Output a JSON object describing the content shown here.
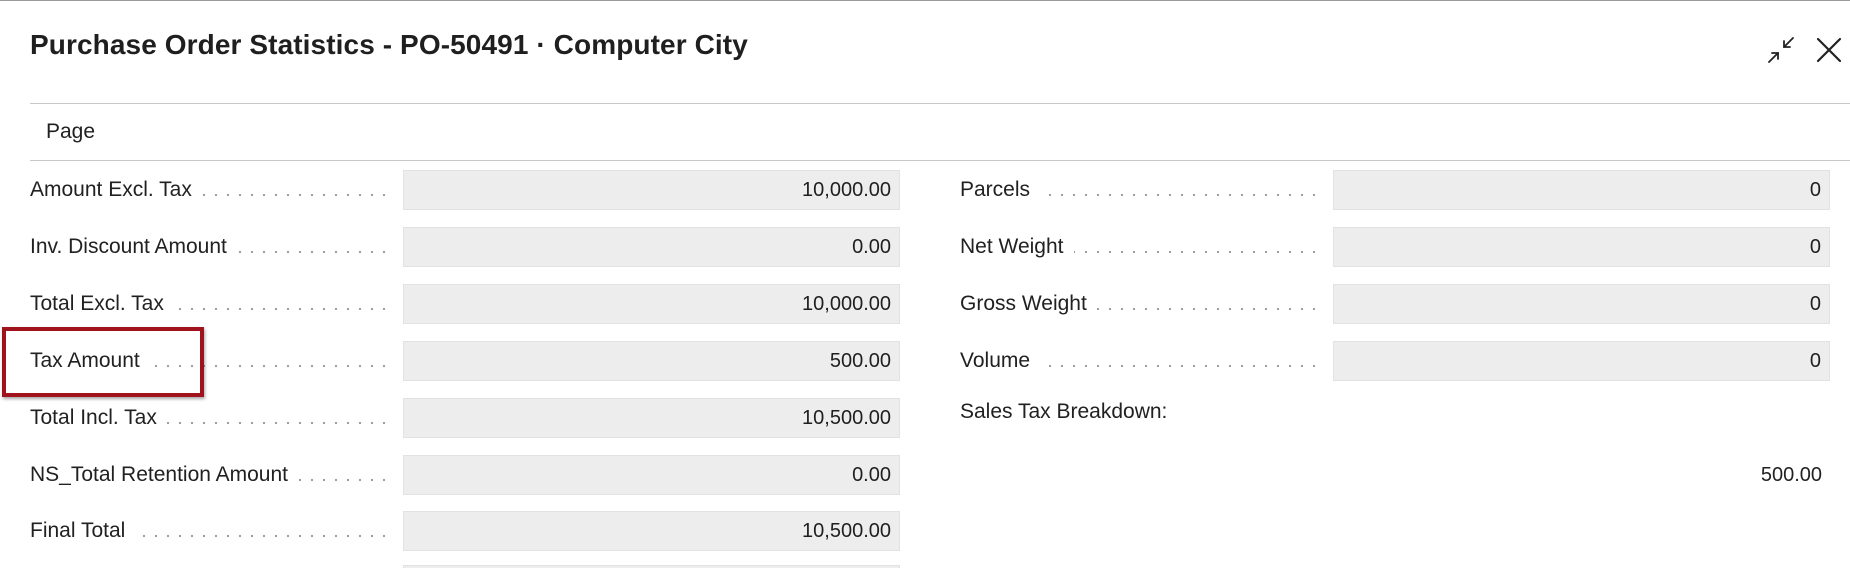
{
  "dialog": {
    "title": "Purchase Order Statistics - PO-50491 · Computer City"
  },
  "toolbar": {
    "page_tab": "Page"
  },
  "icons": {
    "collapse": "collapse-icon",
    "close": "close-icon"
  },
  "left_fields": [
    {
      "label": "Amount Excl. Tax",
      "value": "10,000.00"
    },
    {
      "label": "Inv. Discount Amount",
      "value": "0.00"
    },
    {
      "label": "Total Excl. Tax",
      "value": "10,000.00"
    },
    {
      "label": "Tax Amount",
      "value": "500.00"
    },
    {
      "label": "Total Incl. Tax",
      "value": "10,500.00"
    },
    {
      "label": "NS_Total Retention Amount",
      "value": "0.00"
    },
    {
      "label": "Final Total",
      "value": "10,500.00"
    }
  ],
  "right_fields": [
    {
      "label": "Parcels",
      "value": "0"
    },
    {
      "label": "Net Weight",
      "value": "0"
    },
    {
      "label": "Gross Weight",
      "value": "0"
    },
    {
      "label": "Volume",
      "value": "0"
    }
  ],
  "sales_tax": {
    "label": "Sales Tax Breakdown:",
    "value": "500.00"
  },
  "colors": {
    "highlight": "#a0121c",
    "field_background": "#ededed"
  }
}
